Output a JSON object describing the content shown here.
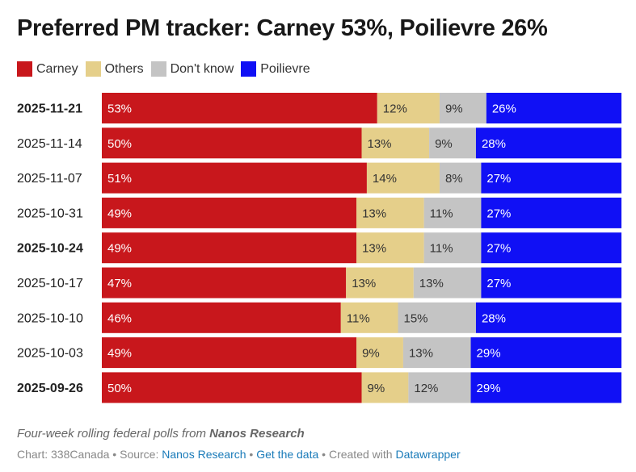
{
  "title": "Preferred PM tracker: Carney 53%, Poilievre 26%",
  "legend": [
    {
      "name": "Carney",
      "color": "#c8171c"
    },
    {
      "name": "Others",
      "color": "#e5cf8a"
    },
    {
      "name": "Don't know",
      "color": "#c4c4c4"
    },
    {
      "name": "Poilievre",
      "color": "#1010f5"
    }
  ],
  "chart_data": {
    "type": "bar",
    "orientation": "horizontal",
    "stacked": true,
    "unit": "%",
    "categories": [
      "2025-11-21",
      "2025-11-14",
      "2025-11-07",
      "2025-10-31",
      "2025-10-24",
      "2025-10-17",
      "2025-10-10",
      "2025-10-03",
      "2025-09-26"
    ],
    "bold_categories": [
      "2025-11-21",
      "2025-10-24",
      "2025-09-26"
    ],
    "series": [
      {
        "name": "Carney",
        "color": "#c8171c",
        "label_color": "#ffffff",
        "values": [
          53,
          50,
          51,
          49,
          49,
          47,
          46,
          49,
          50
        ]
      },
      {
        "name": "Others",
        "color": "#e5cf8a",
        "label_color": "#333333",
        "values": [
          12,
          13,
          14,
          13,
          13,
          13,
          11,
          9,
          9
        ]
      },
      {
        "name": "Don't know",
        "color": "#c4c4c4",
        "label_color": "#333333",
        "values": [
          9,
          9,
          8,
          11,
          11,
          13,
          15,
          13,
          12
        ]
      },
      {
        "name": "Poilievre",
        "color": "#1010f5",
        "label_color": "#ffffff",
        "values": [
          26,
          28,
          27,
          27,
          27,
          27,
          28,
          29,
          29
        ]
      }
    ]
  },
  "footnote": {
    "text": "Four-week rolling federal polls from ",
    "source_bold": "Nanos Research"
  },
  "credits": {
    "chart": "Chart: 338Canada",
    "sep1": " • Source: ",
    "source": "Nanos Research",
    "sep2": " • ",
    "get_data": "Get the data",
    "sep3": " • Created with ",
    "tool": "Datawrapper"
  }
}
